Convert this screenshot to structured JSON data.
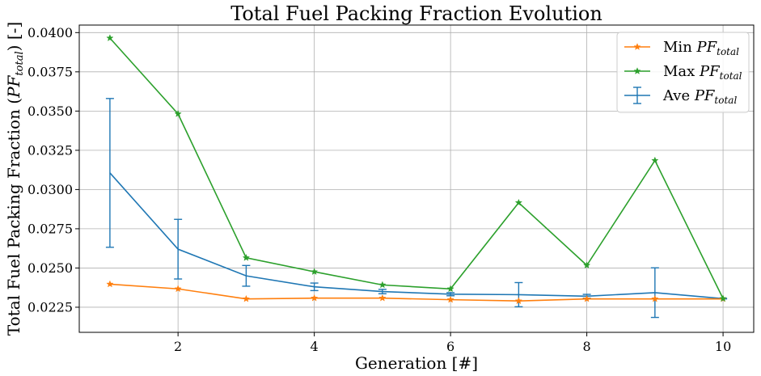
{
  "chart_data": {
    "type": "line",
    "title": "Total Fuel Packing Fraction Evolution",
    "xlabel": "Generation [#]",
    "ylabel": {
      "prefix": "Total Fuel Packing Fraction (",
      "symbol": "PF",
      "subscript": "total",
      "suffix": ") [-]"
    },
    "xlim": [
      0.55,
      10.45
    ],
    "ylim": [
      0.0209,
      0.04048
    ],
    "xticks": [
      2,
      4,
      6,
      8,
      10
    ],
    "yticks": [
      0.0225,
      0.025,
      0.0275,
      0.03,
      0.0325,
      0.035,
      0.0375,
      0.04
    ],
    "grid": true,
    "legend_position": "top-right",
    "x": [
      1,
      2,
      3,
      4,
      5,
      6,
      7,
      8,
      9,
      10
    ],
    "series": [
      {
        "legend_prefix": "Min ",
        "symbol": "PF",
        "subscript": "total",
        "color": "#ff7f0e",
        "marker": "star",
        "values": [
          0.02397,
          0.02367,
          0.02303,
          0.02308,
          0.02308,
          0.02298,
          0.0229,
          0.02303,
          0.02303,
          0.02303
        ]
      },
      {
        "legend_prefix": "Max ",
        "symbol": "PF",
        "subscript": "total",
        "color": "#2ca02c",
        "marker": "star",
        "values": [
          0.03965,
          0.03482,
          0.02565,
          0.02476,
          0.02392,
          0.02367,
          0.02916,
          0.02517,
          0.03185,
          0.02305
        ]
      },
      {
        "legend_prefix": "Ave ",
        "symbol": "PF",
        "subscript": "total",
        "color": "#1f77b4",
        "marker": "errorbar",
        "values": [
          0.03106,
          0.0262,
          0.0245,
          0.0238,
          0.0235,
          0.02333,
          0.0233,
          0.0232,
          0.02343,
          0.02305
        ],
        "error": [
          0.00474,
          0.0019,
          0.00066,
          0.00024,
          0.00014,
          0.0001,
          0.00077,
          0.00012,
          0.00158,
          2e-05
        ]
      }
    ]
  }
}
